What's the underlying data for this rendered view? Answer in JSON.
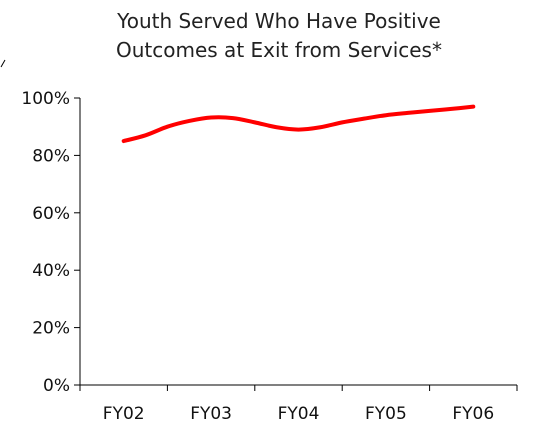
{
  "chart_data": {
    "type": "line",
    "title_lines": [
      "Youth Served Who Have Positive",
      "Outcomes at Exit from Services*"
    ],
    "xlabel": "",
    "ylabel": "",
    "categories": [
      "FY02",
      "FY03",
      "FY04",
      "FY05",
      "FY06"
    ],
    "x": [
      2002.0,
      2002.25,
      2002.5,
      2002.75,
      2003.0,
      2003.25,
      2003.5,
      2003.75,
      2004.0,
      2004.25,
      2004.5,
      2004.75,
      2005.0,
      2005.25,
      2005.5,
      2005.75,
      2006.0
    ],
    "y_tick_labels": [
      "0%",
      "20%",
      "40%",
      "60%",
      "80%",
      "100%"
    ],
    "y_ticks": [
      0,
      20,
      40,
      60,
      80,
      100
    ],
    "ylim": [
      0,
      100
    ],
    "xlim": [
      2001.5,
      2006.5
    ],
    "grid": false,
    "legend": "none",
    "series": [
      {
        "values": [
          85,
          87,
          90,
          92,
          93.2,
          93,
          91.5,
          89.8,
          89,
          89.8,
          91.5,
          92.8,
          94,
          94.8,
          95.5,
          96.2,
          97
        ],
        "color": "#ff0000"
      }
    ]
  }
}
